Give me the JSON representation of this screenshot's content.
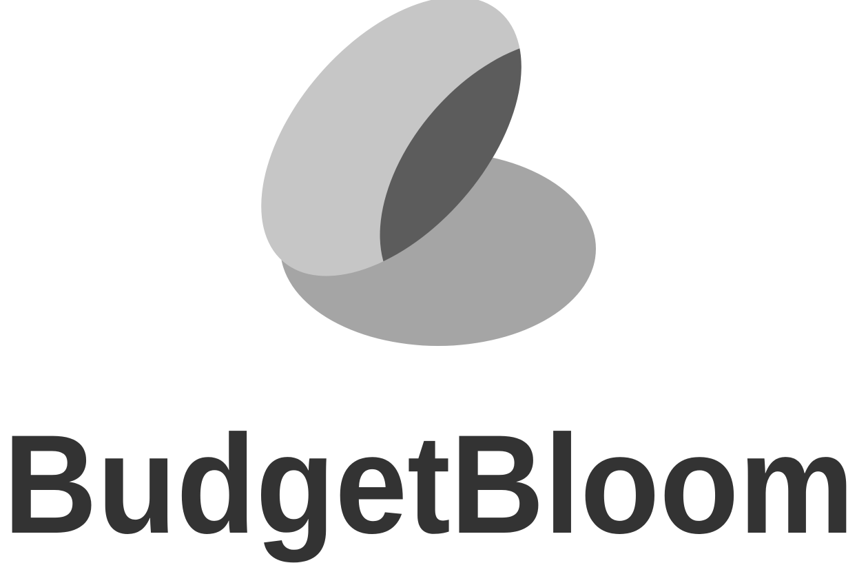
{
  "logo": {
    "wordmark": "BudgetBloom"
  }
}
